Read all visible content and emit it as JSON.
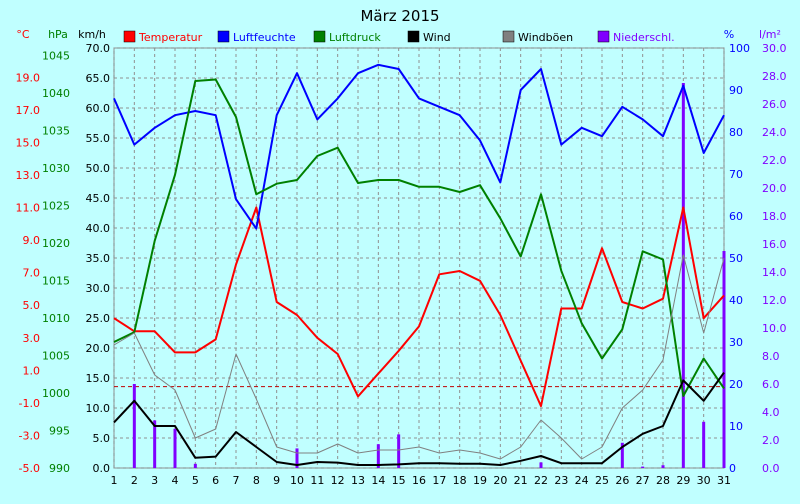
{
  "chart_data": {
    "type": "line",
    "title": "März 2015",
    "x": [
      1,
      2,
      3,
      4,
      5,
      6,
      7,
      8,
      9,
      10,
      11,
      12,
      13,
      14,
      15,
      16,
      17,
      18,
      19,
      20,
      21,
      22,
      23,
      24,
      25,
      26,
      27,
      28,
      29,
      30,
      31
    ],
    "axes": {
      "temp": {
        "unit": "°C",
        "color": "#ff0000",
        "ticks": [
          "-5.0",
          "-3.0",
          "-1.0",
          "1.0",
          "3.0",
          "5.0",
          "7.0",
          "9.0",
          "11.0",
          "13.0",
          "15.0",
          "17.0",
          "19.0"
        ],
        "range": [
          -5,
          20.8
        ]
      },
      "press": {
        "unit": "hPa",
        "color": "#008000",
        "ticks": [
          "990",
          "995",
          "1000",
          "1005",
          "1010",
          "1015",
          "1020",
          "1025",
          "1030",
          "1035",
          "1040",
          "1045"
        ],
        "range": [
          990,
          1046
        ]
      },
      "wind": {
        "unit": "km/h",
        "color": "#000000",
        "ticks": [
          "0.0",
          "5.0",
          "10.0",
          "15.0",
          "20.0",
          "25.0",
          "30.0",
          "35.0",
          "40.0",
          "45.0",
          "50.0",
          "55.0",
          "60.0",
          "65.0",
          "70.0"
        ],
        "range": [
          0,
          70
        ]
      },
      "humid": {
        "unit": "%",
        "color": "#0000ff",
        "ticks": [
          "0",
          "10",
          "20",
          "30",
          "40",
          "50",
          "60",
          "70",
          "80",
          "90",
          "100"
        ],
        "range": [
          0,
          100
        ]
      },
      "precip": {
        "unit": "l/m²",
        "color": "#8000ff",
        "ticks": [
          "0.0",
          "2.0",
          "4.0",
          "6.0",
          "8.0",
          "10.0",
          "12.0",
          "14.0",
          "16.0",
          "18.0",
          "20.0",
          "22.0",
          "24.0",
          "26.0",
          "28.0",
          "30.0"
        ],
        "range": [
          0,
          30
        ]
      }
    },
    "series": [
      {
        "name": "Temperatur",
        "axis": "temp",
        "color": "#ff0000",
        "width": 2,
        "values": [
          4.2,
          3.4,
          3.4,
          2.1,
          2.1,
          2.9,
          7.5,
          11.0,
          5.2,
          4.4,
          3.0,
          2.0,
          -0.6,
          0.8,
          2.2,
          3.7,
          6.9,
          7.1,
          6.5,
          4.4,
          1.6,
          -1.2,
          4.8,
          4.8,
          8.5,
          5.2,
          4.8,
          5.4,
          11.0,
          4.2,
          5.6
        ]
      },
      {
        "name": "Luftfeuchte",
        "axis": "humid",
        "color": "#0000ff",
        "width": 2,
        "values": [
          88,
          77,
          81,
          84,
          85,
          84,
          64,
          57,
          84,
          94,
          83,
          88,
          94,
          96,
          95,
          88,
          86,
          84,
          78,
          68,
          90,
          95,
          77,
          81,
          79,
          86,
          83,
          79,
          91,
          75,
          84
        ]
      },
      {
        "name": "Luftdruck",
        "axis": "press",
        "color": "#008000",
        "width": 2,
        "values": [
          1006.8,
          1008.1,
          1020.3,
          1029.1,
          1041.6,
          1041.8,
          1036.8,
          1026.5,
          1027.9,
          1028.4,
          1031.6,
          1032.7,
          1028.0,
          1028.4,
          1028.4,
          1027.5,
          1027.5,
          1026.8,
          1027.7,
          1023.3,
          1018.2,
          1026.5,
          1016.3,
          1009.3,
          1004.6,
          1008.5,
          1018.9,
          1017.8,
          999.6,
          1004.6,
          1000.6
        ]
      },
      {
        "name": "Wind",
        "axis": "wind",
        "color": "#000000",
        "width": 2,
        "values": [
          7.6,
          11.2,
          7.0,
          7.0,
          1.7,
          1.9,
          6.0,
          3.5,
          1.0,
          0.5,
          1.0,
          0.9,
          0.5,
          0.5,
          0.6,
          0.8,
          0.8,
          0.7,
          0.7,
          0.5,
          1.2,
          2.0,
          0.8,
          0.8,
          0.8,
          3.5,
          5.7,
          7.0,
          14.6,
          11.2,
          15.9
        ]
      },
      {
        "name": "Windböen",
        "axis": "wind",
        "color": "#808080",
        "width": 1,
        "values": [
          20.5,
          22.5,
          15.5,
          13.0,
          5.0,
          6.5,
          19.0,
          11.5,
          3.5,
          2.5,
          2.5,
          4.0,
          2.5,
          3.0,
          3.0,
          3.5,
          2.5,
          3.0,
          2.5,
          1.5,
          3.5,
          8.0,
          5.0,
          1.5,
          3.5,
          10.0,
          13.0,
          18.0,
          35.5,
          22.5,
          35.0
        ]
      },
      {
        "name": "Niederschl.",
        "axis": "precip",
        "color": "#8000ff",
        "type": "bar",
        "values": [
          0,
          6.0,
          3.4,
          2.8,
          0.3,
          0,
          0,
          0,
          0,
          1.4,
          0,
          0,
          0,
          1.7,
          2.4,
          0,
          0,
          0,
          0,
          0,
          0,
          0.4,
          0,
          0,
          0,
          1.8,
          0.1,
          0.2,
          27.5,
          3.3,
          15.5
        ]
      }
    ],
    "reference_line": {
      "axis": "temp",
      "value": 0,
      "color": "#c00000",
      "style": "dashed"
    },
    "grid": true,
    "legend_position": "top"
  }
}
